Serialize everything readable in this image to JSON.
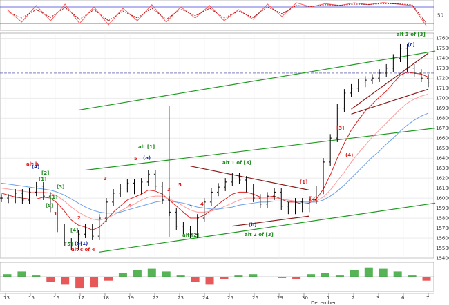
{
  "colors": {
    "price_bar": "#000000",
    "channel": "#1e9a1e",
    "wedge": "#8b1a1a",
    "ema_fast": "#e02020",
    "ema_mid": "#ff9a9a",
    "ema_slow": "#6aa0e8",
    "stoch_k": "#ff5a5a",
    "stoch_d": "#a01818",
    "stoch_ref": "#3c3cd8",
    "osc_pos": "#1e9a1e",
    "osc_neg": "#e02020",
    "label_green": "#1e8a1e",
    "label_red": "#e02020",
    "label_blue": "#1b2fa0",
    "grid": "#d6d6d6",
    "price_line": "#333399"
  },
  "chart_data": [
    {
      "type": "line",
      "panel": "stochastic",
      "y_ticks": [
        "50"
      ],
      "ylim": [
        0,
        100
      ],
      "reference_levels": [
        20,
        80
      ],
      "x": [
        1,
        3,
        5,
        7,
        9,
        11,
        13,
        15,
        17,
        19,
        21,
        23,
        25,
        27,
        29,
        31,
        33,
        35,
        37,
        39,
        41,
        43,
        45,
        47,
        49,
        51,
        53,
        55,
        57,
        59
      ],
      "series": [
        {
          "values": [
            70,
            25,
            85,
            30,
            90,
            20,
            80,
            15,
            75,
            30,
            88,
            25,
            80,
            40,
            85,
            30,
            70,
            35,
            90,
            45,
            95,
            80,
            92,
            85,
            95,
            88,
            96,
            90,
            85,
            10
          ]
        },
        {
          "values": [
            62,
            40,
            70,
            42,
            78,
            35,
            70,
            30,
            65,
            40,
            75,
            35,
            72,
            48,
            75,
            40,
            64,
            42,
            80,
            55,
            85,
            82,
            88,
            86,
            90,
            89,
            92,
            91,
            88,
            20
          ]
        }
      ]
    },
    {
      "type": "line",
      "panel": "price",
      "y_ticks": [
        "17600",
        "17500",
        "17400",
        "17300",
        "17200",
        "17100",
        "17000",
        "16900",
        "16800",
        "16700",
        "16600",
        "16500",
        "16400",
        "16300",
        "16200",
        "16100",
        "16000",
        "15900",
        "15800",
        "15700",
        "15600",
        "15500",
        "15400"
      ],
      "ylim": [
        15400,
        17650
      ],
      "x_ticks": [
        "13",
        "15",
        "16",
        "17",
        "18",
        "19",
        "22",
        "23",
        "24",
        "25",
        "26",
        "29",
        "30",
        "1",
        "2",
        "3",
        "6",
        "7"
      ],
      "x_month_label": "December",
      "xlim": [
        0,
        62
      ],
      "series": [
        {
          "values": [
            16000,
            15990,
            16050,
            15980,
            16060,
            16120,
            16020,
            15900,
            15700,
            15560,
            15520,
            15640,
            15700,
            15620,
            15800,
            15960,
            16050,
            16100,
            16150,
            16080,
            16160,
            16240,
            16120,
            15980,
            15860,
            15720,
            15680,
            15640,
            15800,
            15960,
            16060,
            16110,
            16160,
            16210,
            16180,
            16100,
            16000,
            15940,
            16020,
            16060,
            15920,
            15880,
            15960,
            15900,
            15980,
            16080,
            16360,
            16600,
            16900,
            17050,
            17100,
            17150,
            17180,
            17200,
            17250,
            17300,
            17400,
            17500,
            17300,
            17250,
            17200,
            17150
          ]
        },
        {
          "values": [
            16050,
            16030,
            16010,
            16000,
            15990,
            15990,
            16010,
            16000,
            15950,
            15870,
            15780,
            15730,
            15710,
            15680,
            15710,
            15780,
            15860,
            15920,
            15980,
            16010,
            16040,
            16080,
            16070,
            16040,
            15980,
            15920,
            15860,
            15800,
            15800,
            15830,
            15880,
            15940,
            15990,
            16040,
            16060,
            16060,
            16040,
            16010,
            16010,
            16020,
            15990,
            15960,
            15960,
            15940,
            15950,
            15990,
            16090,
            16230,
            16400,
            16550,
            16680,
            16780,
            16870,
            16940,
            17010,
            17070,
            17150,
            17230,
            17260,
            17250,
            17240,
            17210
          ]
        },
        {
          "values": [
            16100,
            16090,
            16080,
            16070,
            16060,
            16060,
            16060,
            16050,
            16020,
            15970,
            15910,
            15860,
            15820,
            15790,
            15780,
            15800,
            15830,
            15870,
            15910,
            15940,
            15980,
            16010,
            16020,
            16020,
            15990,
            15960,
            15920,
            15880,
            15860,
            15860,
            15870,
            15890,
            15920,
            15950,
            15980,
            16000,
            16000,
            16000,
            16000,
            16000,
            15990,
            15980,
            15970,
            15960,
            15960,
            15970,
            16010,
            16080,
            16170,
            16260,
            16360,
            16450,
            16530,
            16610,
            16680,
            16750,
            16820,
            16890,
            16950,
            16990,
            17020,
            17040
          ]
        },
        {
          "values": [
            16150,
            16140,
            16130,
            16120,
            16110,
            16100,
            16090,
            16080,
            16060,
            16030,
            15990,
            15950,
            15910,
            15880,
            15860,
            15850,
            15850,
            15860,
            15880,
            15900,
            15920,
            15940,
            15960,
            15970,
            15970,
            15960,
            15950,
            15930,
            15910,
            15900,
            15890,
            15890,
            15900,
            15910,
            15930,
            15940,
            15950,
            15960,
            15960,
            15970,
            15970,
            15970,
            15960,
            15960,
            15960,
            15960,
            15980,
            16020,
            16070,
            16130,
            16200,
            16270,
            16340,
            16410,
            16470,
            16540,
            16600,
            16670,
            16730,
            16780,
            16820,
            16850
          ]
        }
      ],
      "annotations": [
        "alt b",
        "(4)",
        "[2]",
        "[1]",
        "[5]",
        "[1]",
        "[3]",
        "[4]",
        "1",
        "2",
        "3",
        "4",
        "5",
        "[5]",
        "(5)",
        "(1)",
        "alt c of 4",
        "alt [1]",
        "(a)",
        "5",
        "1",
        "3",
        "4",
        "alt [2]",
        "alt 1 of [3]",
        "(b)",
        "alt 2 of [3]",
        "[1]",
        "[2]",
        "[3]",
        "(4)",
        "(c)",
        "alt 3 of [3]"
      ]
    },
    {
      "type": "bar",
      "panel": "oscillator",
      "x": [
        1,
        3,
        5,
        7,
        9,
        11,
        13,
        15,
        17,
        19,
        21,
        23,
        25,
        27,
        29,
        31,
        33,
        35,
        37,
        39,
        41,
        43,
        45,
        47,
        49,
        51,
        53,
        55,
        57,
        59
      ],
      "values": [
        2,
        4,
        1,
        -4,
        -6,
        -9,
        -8,
        -3,
        3,
        5,
        6,
        4,
        1,
        -4,
        -6,
        -2,
        1,
        2,
        0,
        -1,
        -2,
        2,
        3,
        1,
        5,
        7,
        6,
        4,
        1,
        -3
      ],
      "ylim": [
        -10,
        10
      ]
    }
  ]
}
